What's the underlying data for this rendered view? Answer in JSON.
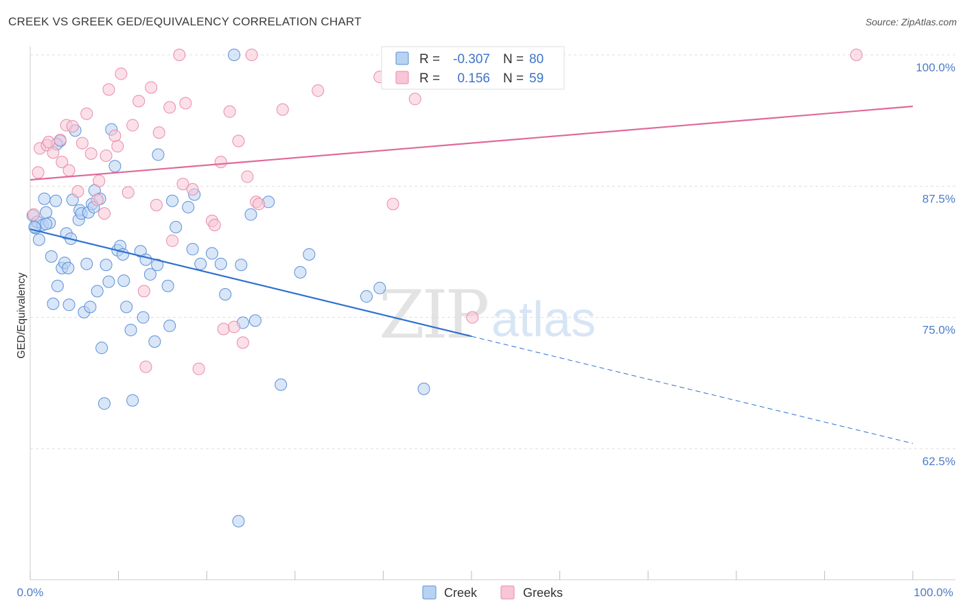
{
  "header": {
    "title": "CREEK VS GREEK GED/EQUIVALENCY CORRELATION CHART",
    "source": "Source: ZipAtlas.com"
  },
  "watermark": {
    "zip": "ZIP",
    "atlas": "atlas"
  },
  "colors": {
    "creek_fill": "#b8d2f2",
    "creek_stroke": "#5b8fd6",
    "creek_line": "#2d6fcf",
    "greeks_fill": "#f8c6d6",
    "greeks_stroke": "#e98aa9",
    "greeks_line": "#e0699a",
    "grid": "#dddddd",
    "tick_label": "#4a7cc9"
  },
  "legend": {
    "rows": [
      {
        "r_label": "R =",
        "r_value": "-0.307",
        "n_label": "N =",
        "n_value": "80"
      },
      {
        "r_label": "R =",
        "r_value": "0.156",
        "n_label": "N =",
        "n_value": "59"
      }
    ]
  },
  "chart_data": {
    "type": "scatter",
    "title": "CREEK VS GREEK GED/EQUIVALENCY CORRELATION CHART",
    "xlabel": "",
    "ylabel": "GED/Equivalency",
    "xlim": [
      0,
      100
    ],
    "ylim": [
      50.6,
      101.5
    ],
    "x_tick_labels": [
      "0.0%",
      "100.0%"
    ],
    "y_ticks": [
      100.0,
      87.5,
      75.0,
      62.5
    ],
    "y_tick_labels": [
      "100.0%",
      "87.5%",
      "75.0%",
      "62.5%"
    ],
    "grid": true,
    "legend_position": "bottom-center",
    "series": [
      {
        "name": "Creek",
        "R": -0.307,
        "N": 80,
        "trend": {
          "x0": 0,
          "y0": 83.4,
          "x1": 50,
          "y1": 73.2,
          "dashed_to_x": 100,
          "dashed_to_y": 63.0
        },
        "points": [
          [
            0.3,
            84.7
          ],
          [
            0.6,
            83.5
          ],
          [
            0.8,
            84.1
          ],
          [
            1.0,
            82.4
          ],
          [
            1.4,
            83.8
          ],
          [
            1.6,
            86.3
          ],
          [
            1.8,
            85.0
          ],
          [
            2.2,
            84.0
          ],
          [
            2.4,
            80.8
          ],
          [
            2.6,
            76.3
          ],
          [
            2.9,
            86.1
          ],
          [
            3.1,
            78.0
          ],
          [
            3.4,
            91.8
          ],
          [
            3.6,
            79.7
          ],
          [
            3.9,
            80.2
          ],
          [
            4.1,
            83.0
          ],
          [
            4.3,
            79.7
          ],
          [
            4.4,
            76.2
          ],
          [
            4.6,
            82.5
          ],
          [
            4.8,
            86.2
          ],
          [
            5.1,
            92.8
          ],
          [
            5.5,
            84.3
          ],
          [
            5.6,
            85.2
          ],
          [
            5.8,
            84.9
          ],
          [
            6.1,
            75.5
          ],
          [
            6.4,
            80.1
          ],
          [
            6.6,
            85.0
          ],
          [
            6.8,
            76.0
          ],
          [
            7.0,
            85.8
          ],
          [
            7.2,
            85.5
          ],
          [
            7.3,
            87.1
          ],
          [
            7.6,
            77.5
          ],
          [
            7.9,
            86.3
          ],
          [
            8.1,
            72.1
          ],
          [
            8.4,
            66.8
          ],
          [
            8.6,
            80.0
          ],
          [
            8.9,
            78.4
          ],
          [
            9.2,
            92.9
          ],
          [
            9.6,
            89.4
          ],
          [
            9.9,
            81.4
          ],
          [
            10.2,
            81.8
          ],
          [
            10.5,
            81.0
          ],
          [
            10.6,
            78.5
          ],
          [
            10.9,
            76.0
          ],
          [
            11.4,
            73.8
          ],
          [
            11.6,
            67.1
          ],
          [
            12.5,
            81.3
          ],
          [
            12.8,
            75.0
          ],
          [
            13.1,
            80.5
          ],
          [
            13.6,
            79.1
          ],
          [
            14.1,
            72.7
          ],
          [
            14.4,
            80.0
          ],
          [
            14.5,
            90.5
          ],
          [
            15.6,
            78.0
          ],
          [
            15.8,
            74.2
          ],
          [
            16.1,
            86.1
          ],
          [
            16.5,
            83.6
          ],
          [
            17.9,
            85.5
          ],
          [
            18.4,
            81.5
          ],
          [
            18.6,
            86.7
          ],
          [
            19.3,
            80.1
          ],
          [
            20.6,
            81.1
          ],
          [
            21.6,
            80.1
          ],
          [
            22.1,
            77.2
          ],
          [
            23.1,
            100.0
          ],
          [
            23.6,
            55.6
          ],
          [
            23.9,
            80.0
          ],
          [
            24.1,
            74.5
          ],
          [
            25.0,
            84.8
          ],
          [
            25.5,
            74.7
          ],
          [
            27.0,
            86.0
          ],
          [
            28.4,
            68.6
          ],
          [
            30.6,
            79.3
          ],
          [
            31.6,
            81.0
          ],
          [
            38.1,
            77.0
          ],
          [
            39.6,
            77.8
          ],
          [
            44.6,
            68.2
          ],
          [
            3.0,
            91.5
          ],
          [
            0.5,
            83.6
          ],
          [
            1.8,
            83.9
          ]
        ]
      },
      {
        "name": "Greeks",
        "R": 0.156,
        "N": 59,
        "trend": {
          "x0": 0,
          "y0": 88.1,
          "x1": 100,
          "y1": 95.1
        },
        "points": [
          [
            0.4,
            84.8
          ],
          [
            0.9,
            88.8
          ],
          [
            1.1,
            91.1
          ],
          [
            1.9,
            91.4
          ],
          [
            2.1,
            91.7
          ],
          [
            2.6,
            90.7
          ],
          [
            3.4,
            91.9
          ],
          [
            3.6,
            89.8
          ],
          [
            4.1,
            93.3
          ],
          [
            4.4,
            89.0
          ],
          [
            4.8,
            93.2
          ],
          [
            5.4,
            87.0
          ],
          [
            5.9,
            91.6
          ],
          [
            6.4,
            94.4
          ],
          [
            6.9,
            90.6
          ],
          [
            7.6,
            86.2
          ],
          [
            7.8,
            88.0
          ],
          [
            8.4,
            84.9
          ],
          [
            8.6,
            90.4
          ],
          [
            8.9,
            96.7
          ],
          [
            9.6,
            92.3
          ],
          [
            9.9,
            91.3
          ],
          [
            10.3,
            98.2
          ],
          [
            11.1,
            86.9
          ],
          [
            11.6,
            93.3
          ],
          [
            12.3,
            95.6
          ],
          [
            12.9,
            77.5
          ],
          [
            13.1,
            70.3
          ],
          [
            13.7,
            96.9
          ],
          [
            14.3,
            85.7
          ],
          [
            14.6,
            92.6
          ],
          [
            15.8,
            95.0
          ],
          [
            16.1,
            82.3
          ],
          [
            16.9,
            100.0
          ],
          [
            17.3,
            87.7
          ],
          [
            17.6,
            95.4
          ],
          [
            18.4,
            87.2
          ],
          [
            19.1,
            70.1
          ],
          [
            20.6,
            84.2
          ],
          [
            20.9,
            83.8
          ],
          [
            21.6,
            89.8
          ],
          [
            21.9,
            73.9
          ],
          [
            22.6,
            94.6
          ],
          [
            23.1,
            74.1
          ],
          [
            23.6,
            91.8
          ],
          [
            24.1,
            72.6
          ],
          [
            24.6,
            88.4
          ],
          [
            25.1,
            100.0
          ],
          [
            25.6,
            86.0
          ],
          [
            25.9,
            85.8
          ],
          [
            28.6,
            94.8
          ],
          [
            32.6,
            96.6
          ],
          [
            39.6,
            97.9
          ],
          [
            41.1,
            85.8
          ],
          [
            43.6,
            95.8
          ],
          [
            50.1,
            75.0
          ],
          [
            52.1,
            100.0
          ],
          [
            56.1,
            100.0
          ],
          [
            93.6,
            100.0
          ]
        ]
      }
    ]
  }
}
